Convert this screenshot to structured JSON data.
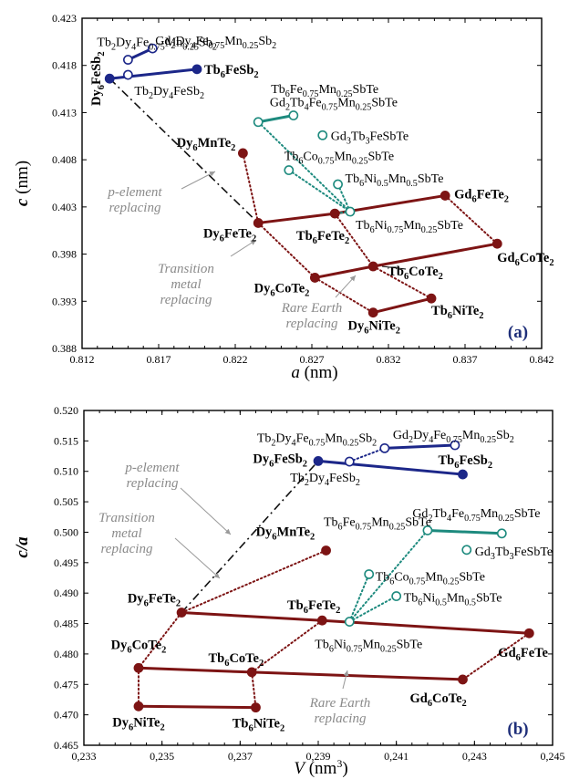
{
  "colors": {
    "blue": "#1c2789",
    "maroon": "#7d1414",
    "teal": "#1d8a7e",
    "annotation": "#8a8a8a",
    "tag": "#1f2f7a"
  },
  "chart_data": [
    {
      "type": "scatter",
      "tag": "(a)",
      "xlabel": "a (nm)",
      "ylabel": "c (nm)",
      "xlim": [
        0.812,
        0.842
      ],
      "ylim": [
        0.388,
        0.423
      ],
      "xticks": [
        "0.812",
        "0.817",
        "0.822",
        "0.827",
        "0.832",
        "0.837",
        "0.842"
      ],
      "xtick_values": [
        0.812,
        0.817,
        0.822,
        0.827,
        0.832,
        0.837,
        0.842
      ],
      "yticks": [
        "0.388",
        "0.393",
        "0.398",
        "0.403",
        "0.408",
        "0.413",
        "0.418",
        "0.423"
      ],
      "ytick_values": [
        0.388,
        0.393,
        0.398,
        0.403,
        0.408,
        0.413,
        0.418,
        0.423
      ],
      "points": [
        {
          "id": "dy6fesb2",
          "x": 0.8138,
          "y": 0.4166,
          "color": "blue",
          "filled": true,
          "label": "Dy6FeSb2",
          "bold": true
        },
        {
          "id": "tb6fesb2",
          "x": 0.8195,
          "y": 0.4176,
          "color": "blue",
          "filled": true,
          "label": "Tb6FeSb2",
          "bold": true
        },
        {
          "id": "tb2dy4fesb2",
          "x": 0.815,
          "y": 0.417,
          "color": "blue",
          "filled": false,
          "label": "Tb2Dy4FeSb2"
        },
        {
          "id": "tb2dy4femn",
          "x": 0.815,
          "y": 0.4186,
          "color": "blue",
          "filled": false,
          "label": "Tb2Dy4Fe0.75Mn0.25Sb2"
        },
        {
          "id": "gd2dy4femn",
          "x": 0.8166,
          "y": 0.4198,
          "color": "blue",
          "filled": false,
          "label": "Gd2Dy4Fe0.75Mn0.25Sb2"
        },
        {
          "id": "tb6femnsbte",
          "x": 0.8235,
          "y": 0.412,
          "color": "teal",
          "filled": false,
          "label": "Tb6Fe0.75Mn0.25SbTe"
        },
        {
          "id": "gd2tb4femnsbte",
          "x": 0.8258,
          "y": 0.4127,
          "color": "teal",
          "filled": false,
          "label": "Gd2Tb4Fe0.75Mn0.25SbTe"
        },
        {
          "id": "gd3tb3fesbte",
          "x": 0.8277,
          "y": 0.4106,
          "color": "teal",
          "filled": false,
          "label": "Gd3Tb3FeSbTe"
        },
        {
          "id": "tb6comnsbte",
          "x": 0.8255,
          "y": 0.4069,
          "color": "teal",
          "filled": false,
          "label": "Tb6Co0.75Mn0.25SbTe"
        },
        {
          "id": "tb6ni05sbte",
          "x": 0.8287,
          "y": 0.4054,
          "color": "teal",
          "filled": false,
          "label": "Tb6Ni0.5Mn0.5SbTe"
        },
        {
          "id": "tb6ni075sbte",
          "x": 0.8295,
          "y": 0.4025,
          "color": "teal",
          "filled": false,
          "label": "Tb6Ni0.75Mn0.25SbTe"
        },
        {
          "id": "dy6mnte2",
          "x": 0.8225,
          "y": 0.4087,
          "color": "maroon",
          "filled": true,
          "label": "Dy6MnTe2",
          "bold": true
        },
        {
          "id": "dy6fete2",
          "x": 0.8235,
          "y": 0.4013,
          "color": "maroon",
          "filled": true,
          "label": "Dy6FeTe2",
          "bold": true
        },
        {
          "id": "tb6fete2",
          "x": 0.8285,
          "y": 0.4023,
          "color": "maroon",
          "filled": true,
          "label": "Tb6FeTe2",
          "bold": true
        },
        {
          "id": "gd6fete2",
          "x": 0.8357,
          "y": 0.4042,
          "color": "maroon",
          "filled": true,
          "label": "Gd6FeTe2",
          "bold": true
        },
        {
          "id": "dy6cote2",
          "x": 0.8272,
          "y": 0.3955,
          "color": "maroon",
          "filled": true,
          "label": "Dy6CoTe2",
          "bold": true
        },
        {
          "id": "tb6cote2",
          "x": 0.831,
          "y": 0.3967,
          "color": "maroon",
          "filled": true,
          "label": "Tb6CoTe2",
          "bold": true
        },
        {
          "id": "gd6cote2",
          "x": 0.8391,
          "y": 0.3991,
          "color": "maroon",
          "filled": true,
          "label": "Gd6CoTe2",
          "bold": true
        },
        {
          "id": "dy6nite2",
          "x": 0.831,
          "y": 0.3918,
          "color": "maroon",
          "filled": true,
          "label": "Dy6NiTe2",
          "bold": true
        },
        {
          "id": "tb6nite2",
          "x": 0.8348,
          "y": 0.3933,
          "color": "maroon",
          "filled": true,
          "label": "Tb6NiTe2",
          "bold": true
        }
      ],
      "lines": [
        {
          "from": "dy6fesb2",
          "to": "tb6fesb2",
          "style": "solid",
          "color": "blue"
        },
        {
          "from": "tb2dy4femn",
          "to": "gd2dy4femn",
          "style": "solid",
          "color": "blue"
        },
        {
          "from": "tb6femnsbte",
          "to": "gd2tb4femnsbte",
          "style": "solid",
          "color": "teal"
        },
        {
          "from": "dy6fete2",
          "to": "tb6fete2",
          "style": "solid",
          "color": "maroon"
        },
        {
          "from": "tb6fete2",
          "to": "gd6fete2",
          "style": "solid",
          "color": "maroon"
        },
        {
          "from": "dy6cote2",
          "to": "tb6cote2",
          "style": "solid",
          "color": "maroon"
        },
        {
          "from": "tb6cote2",
          "to": "gd6cote2",
          "style": "solid",
          "color": "maroon"
        },
        {
          "from": "dy6nite2",
          "to": "tb6nite2",
          "style": "solid",
          "color": "maroon"
        },
        {
          "from": "dy6fesb2",
          "to": "dy6fete2",
          "style": "dashdot",
          "color": "black"
        },
        {
          "from": "dy6mnte2",
          "to": "dy6fete2",
          "style": "dotted",
          "color": "maroon"
        },
        {
          "from": "dy6fete2",
          "to": "dy6cote2",
          "style": "dotted",
          "color": "maroon"
        },
        {
          "from": "dy6cote2",
          "to": "dy6nite2",
          "style": "dotted",
          "color": "maroon"
        },
        {
          "from": "tb6fete2",
          "to": "tb6cote2",
          "style": "dotted",
          "color": "maroon"
        },
        {
          "from": "tb6cote2",
          "to": "tb6nite2",
          "style": "dotted",
          "color": "maroon"
        },
        {
          "from": "gd6fete2",
          "to": "gd6cote2",
          "style": "dotted",
          "color": "maroon"
        },
        {
          "from": "tb6femnsbte",
          "to": "tb6ni075sbte",
          "style": "dotted",
          "color": "teal"
        },
        {
          "from": "tb6comnsbte",
          "to": "tb6ni075sbte",
          "style": "dotted",
          "color": "teal"
        },
        {
          "from": "tb6ni05sbte",
          "to": "tb6ni075sbte",
          "style": "dotted",
          "color": "teal"
        },
        {
          "from": "tb6ni075sbte",
          "to": "tb6fete2",
          "style": "dotted",
          "color": "teal"
        }
      ],
      "annotations": [
        {
          "text": [
            "p-element",
            "replacing"
          ]
        },
        {
          "text": [
            "Transition",
            "metal",
            "replacing"
          ]
        },
        {
          "text": [
            "Rare Earth",
            "replacing"
          ]
        }
      ]
    },
    {
      "type": "scatter",
      "tag": "(b)",
      "xlabel": "V (nm3)",
      "ylabel": "c/a",
      "xlim": [
        0.233,
        0.245
      ],
      "ylim": [
        0.465,
        0.52
      ],
      "xticks": [
        "0,233",
        "0,235",
        "0,237",
        "0,239",
        "0,241",
        "0,243",
        "0,245"
      ],
      "xtick_values": [
        0.233,
        0.235,
        0.237,
        0.239,
        0.241,
        0.243,
        0.245
      ],
      "yticks": [
        "0.465",
        "0.470",
        "0.475",
        "0.480",
        "0.485",
        "0.490",
        "0.495",
        "0.500",
        "0.505",
        "0.510",
        "0.515",
        "0.520"
      ],
      "ytick_values": [
        0.465,
        0.47,
        0.475,
        0.48,
        0.485,
        0.49,
        0.495,
        0.5,
        0.505,
        0.51,
        0.515,
        0.52
      ],
      "points": [
        {
          "id": "dy6fesb2",
          "x": 0.239,
          "y": 0.5117,
          "color": "blue",
          "filled": true,
          "label": "Dy6FeSb2",
          "bold": true
        },
        {
          "id": "tb6fesb2",
          "x": 0.2427,
          "y": 0.5095,
          "color": "blue",
          "filled": true,
          "label": "Tb6FeSb2",
          "bold": true
        },
        {
          "id": "tb2dy4fesb2",
          "x": 0.2398,
          "y": 0.5116,
          "color": "blue",
          "filled": false,
          "label": "Tb2Dy4FeSb2"
        },
        {
          "id": "tb2dy4femn",
          "x": 0.2407,
          "y": 0.5138,
          "color": "blue",
          "filled": false,
          "label": "Tb2Dy4Fe0.75Mn0.25Sb2"
        },
        {
          "id": "gd2dy4femn",
          "x": 0.2425,
          "y": 0.5143,
          "color": "blue",
          "filled": false,
          "label": "Gd2Dy4Fe0.75Mn0.25Sb2"
        },
        {
          "id": "tb6femnsbte",
          "x": 0.2418,
          "y": 0.5003,
          "color": "teal",
          "filled": false,
          "label": "Tb6Fe0.75Mn0.25SbTe"
        },
        {
          "id": "gd2tb4femnsbte",
          "x": 0.2437,
          "y": 0.4998,
          "color": "teal",
          "filled": false,
          "label": "Gd2Tb4Fe0.75Mn0.25SbTe"
        },
        {
          "id": "gd3tb3fesbte",
          "x": 0.2428,
          "y": 0.4971,
          "color": "teal",
          "filled": false,
          "label": "Gd3Tb3FeSbTe"
        },
        {
          "id": "tb6comnsbte",
          "x": 0.2403,
          "y": 0.4931,
          "color": "teal",
          "filled": false,
          "label": "Tb6Co0.75Mn0.25SbTe"
        },
        {
          "id": "tb6ni05sbte",
          "x": 0.241,
          "y": 0.4895,
          "color": "teal",
          "filled": false,
          "label": "Tb6Ni0.5Mn0.5SbTe"
        },
        {
          "id": "tb6ni075sbte",
          "x": 0.2398,
          "y": 0.4853,
          "color": "teal",
          "filled": false,
          "label": "Tb6Ni0.75Mn0.25SbTe"
        },
        {
          "id": "dy6mnte2",
          "x": 0.2392,
          "y": 0.497,
          "color": "maroon",
          "filled": true,
          "label": "Dy6MnTe2",
          "bold": true
        },
        {
          "id": "dy6fete2",
          "x": 0.2355,
          "y": 0.4868,
          "color": "maroon",
          "filled": true,
          "label": "Dy6FeTe2",
          "bold": true
        },
        {
          "id": "tb6fete2",
          "x": 0.2391,
          "y": 0.4855,
          "color": "maroon",
          "filled": true,
          "label": "Tb6FeTe2",
          "bold": true
        },
        {
          "id": "gd6fete2",
          "x": 0.2444,
          "y": 0.4834,
          "color": "maroon",
          "filled": true,
          "label": "Gd6FeTe",
          "bold": true
        },
        {
          "id": "dy6cote2",
          "x": 0.2344,
          "y": 0.4777,
          "color": "maroon",
          "filled": true,
          "label": "Dy6CoTe2",
          "bold": true
        },
        {
          "id": "tb6cote2",
          "x": 0.2373,
          "y": 0.477,
          "color": "maroon",
          "filled": true,
          "label": "Tb6CoTe2",
          "bold": true
        },
        {
          "id": "gd6cote2",
          "x": 0.2427,
          "y": 0.4758,
          "color": "maroon",
          "filled": true,
          "label": "Gd6CoTe2",
          "bold": true
        },
        {
          "id": "dy6nite2",
          "x": 0.2344,
          "y": 0.4714,
          "color": "maroon",
          "filled": true,
          "label": "Dy6NiTe2",
          "bold": true
        },
        {
          "id": "tb6nite2",
          "x": 0.2374,
          "y": 0.4712,
          "color": "maroon",
          "filled": true,
          "label": "Tb6NiTe2",
          "bold": true
        }
      ],
      "lines": [
        {
          "from": "dy6fesb2",
          "to": "tb6fesb2",
          "style": "solid",
          "color": "blue"
        },
        {
          "from": "tb2dy4femn",
          "to": "gd2dy4femn",
          "style": "solid",
          "color": "blue"
        },
        {
          "from": "tb2dy4fesb2",
          "to": "tb2dy4femn",
          "style": "dotted",
          "color": "blue"
        },
        {
          "from": "tb6femnsbte",
          "to": "gd2tb4femnsbte",
          "style": "solid",
          "color": "teal"
        },
        {
          "from": "dy6fete2",
          "to": "tb6fete2",
          "style": "solid",
          "color": "maroon"
        },
        {
          "from": "tb6fete2",
          "to": "gd6fete2",
          "style": "solid",
          "color": "maroon"
        },
        {
          "from": "dy6cote2",
          "to": "tb6cote2",
          "style": "solid",
          "color": "maroon"
        },
        {
          "from": "tb6cote2",
          "to": "gd6cote2",
          "style": "solid",
          "color": "maroon"
        },
        {
          "from": "dy6nite2",
          "to": "tb6nite2",
          "style": "solid",
          "color": "maroon"
        },
        {
          "from": "dy6fete2",
          "to": "dy6fesb2",
          "style": "dashdot",
          "color": "black"
        },
        {
          "from": "dy6fete2",
          "to": "dy6mnte2",
          "style": "dotted",
          "color": "maroon"
        },
        {
          "from": "dy6fete2",
          "to": "dy6cote2",
          "style": "dotted",
          "color": "maroon"
        },
        {
          "from": "dy6cote2",
          "to": "dy6nite2",
          "style": "dotted",
          "color": "maroon"
        },
        {
          "from": "tb6fete2",
          "to": "tb6cote2",
          "style": "dotted",
          "color": "maroon"
        },
        {
          "from": "tb6cote2",
          "to": "tb6nite2",
          "style": "dotted",
          "color": "maroon"
        },
        {
          "from": "gd6fete2",
          "to": "gd6cote2",
          "style": "dotted",
          "color": "maroon"
        },
        {
          "from": "tb6ni075sbte",
          "to": "tb6femnsbte",
          "style": "dotted",
          "color": "teal"
        },
        {
          "from": "tb6ni075sbte",
          "to": "tb6comnsbte",
          "style": "dotted",
          "color": "teal"
        },
        {
          "from": "tb6ni075sbte",
          "to": "tb6ni05sbte",
          "style": "dotted",
          "color": "teal"
        }
      ],
      "annotations": [
        {
          "text": [
            "p-element",
            "replacing"
          ]
        },
        {
          "text": [
            "Transition",
            "metal",
            "replacing"
          ]
        },
        {
          "text": [
            "Rare Earth",
            "replacing"
          ]
        }
      ]
    }
  ]
}
